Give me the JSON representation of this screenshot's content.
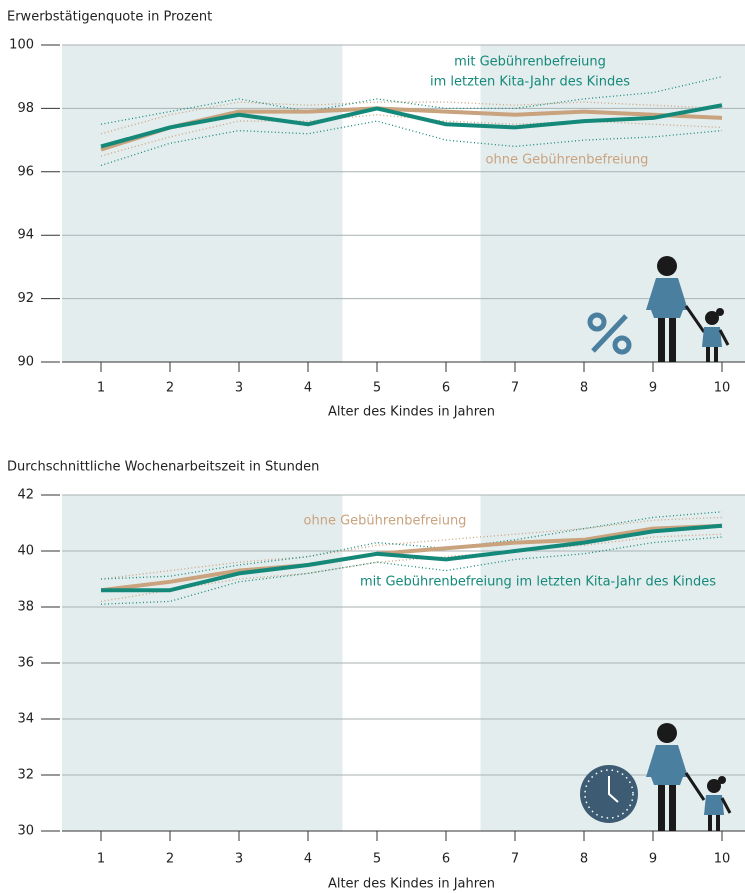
{
  "chart_data": [
    {
      "type": "line",
      "title": "Erwerbstätigenquote in Prozent",
      "x_label": "Alter des Kindes in Jahren",
      "categories": [
        "1",
        "2",
        "3",
        "4",
        "5",
        "6",
        "7",
        "8",
        "9",
        "10"
      ],
      "ylim": [
        90,
        100
      ],
      "yticks": [
        90,
        92,
        94,
        96,
        98,
        100
      ],
      "grid": true,
      "highlight": [
        "5",
        "6"
      ],
      "series": [
        {
          "label": [
            "ohne Gebührenbefreiung"
          ],
          "color": "#c9a27e",
          "values": [
            96.7,
            97.4,
            97.9,
            97.9,
            98.0,
            97.9,
            97.8,
            97.9,
            97.8,
            97.7
          ],
          "ci_high": [
            97.2,
            97.8,
            98.2,
            98.1,
            98.2,
            98.2,
            98.1,
            98.2,
            98.1,
            98.0
          ],
          "ci_low": [
            96.5,
            97.1,
            97.6,
            97.6,
            97.8,
            97.6,
            97.5,
            97.6,
            97.5,
            97.4
          ]
        },
        {
          "label": [
            "mit Gebührenbefreiung",
            "im letzten Kita-Jahr des Kindes"
          ],
          "color": "#14897a",
          "values": [
            96.8,
            97.4,
            97.8,
            97.5,
            98.0,
            97.5,
            97.4,
            97.6,
            97.7,
            98.1
          ],
          "ci_high": [
            97.5,
            97.9,
            98.3,
            97.9,
            98.3,
            98.0,
            98.0,
            98.3,
            98.5,
            99.0
          ],
          "ci_low": [
            96.2,
            96.9,
            97.3,
            97.2,
            97.6,
            97.0,
            96.8,
            97.0,
            97.1,
            97.3
          ]
        }
      ]
    },
    {
      "type": "line",
      "title": "Durchschnittliche Wochenarbeitszeit in Stunden",
      "x_label": "Alter des Kindes in Jahren",
      "categories": [
        "1",
        "2",
        "3",
        "4",
        "5",
        "6",
        "7",
        "8",
        "9",
        "10"
      ],
      "ylim": [
        30,
        42
      ],
      "yticks": [
        30,
        32,
        34,
        36,
        38,
        40,
        42
      ],
      "grid": true,
      "highlight": [
        "5",
        "6"
      ],
      "series": [
        {
          "label": [
            "ohne Gebührenbefreiung"
          ],
          "color": "#c9a27e",
          "values": [
            38.6,
            38.9,
            39.3,
            39.5,
            39.9,
            40.1,
            40.3,
            40.4,
            40.8,
            40.9
          ],
          "ci_high": [
            39.0,
            39.3,
            39.6,
            39.8,
            40.2,
            40.4,
            40.6,
            40.8,
            41.1,
            41.2
          ],
          "ci_low": [
            38.2,
            38.6,
            39.0,
            39.2,
            39.6,
            39.8,
            40.0,
            40.2,
            40.5,
            40.6
          ]
        },
        {
          "label": [
            "mit Gebührenbefreiung im letzten Kita-Jahr des Kindes"
          ],
          "color": "#14897a",
          "values": [
            38.6,
            38.6,
            39.2,
            39.5,
            39.9,
            39.7,
            40.0,
            40.3,
            40.7,
            40.9
          ],
          "ci_high": [
            39.0,
            39.1,
            39.5,
            39.8,
            40.3,
            40.1,
            40.4,
            40.8,
            41.2,
            41.4
          ],
          "ci_low": [
            38.1,
            38.2,
            38.9,
            39.2,
            39.6,
            39.3,
            39.7,
            39.9,
            40.3,
            40.5
          ]
        }
      ]
    }
  ]
}
